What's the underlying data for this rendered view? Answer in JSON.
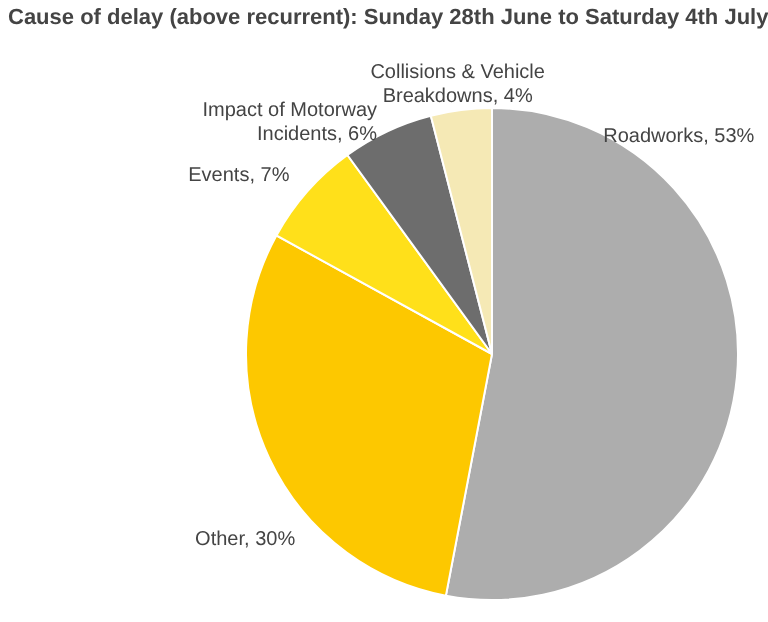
{
  "chart_data": {
    "type": "pie",
    "title": "Cause of delay (above recurrent): Sunday 28th June to Saturday 4th July",
    "categories": [
      "Roadworks, 53%",
      "Other, 30%",
      "Events, 7%",
      "Impact of Motorway Incidents, 6%",
      "Collisions & Vehicle Breakdowns, 4%"
    ],
    "values": [
      53,
      30,
      7,
      6,
      4
    ],
    "colors": [
      "#adadad",
      "#fdc800",
      "#ffe01a",
      "#6d6d6d",
      "#f5e9b5"
    ]
  }
}
